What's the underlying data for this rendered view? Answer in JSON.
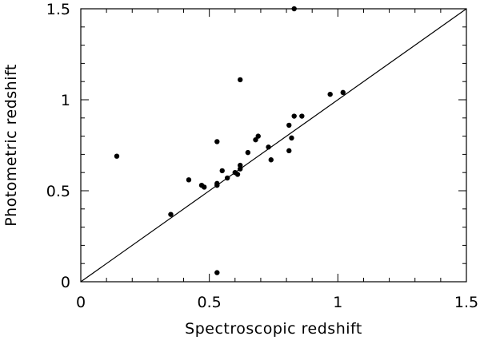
{
  "chart_data": {
    "type": "scatter",
    "xlabel": "Spectroscopic redshift",
    "ylabel": "Photometric redshift",
    "xlim": [
      0,
      1.5
    ],
    "ylim": [
      0,
      1.5
    ],
    "xticks": [
      0,
      0.5,
      1,
      1.5
    ],
    "yticks": [
      0,
      0.5,
      1,
      1.5
    ],
    "xtick_labels": [
      "0",
      "0.5",
      "1",
      "1.5"
    ],
    "ytick_labels": [
      "0",
      "0.5",
      "1",
      "1.5"
    ],
    "reference_line": {
      "from": [
        0,
        0
      ],
      "to": [
        1.5,
        1.5
      ]
    },
    "grid": false,
    "points": [
      {
        "x": 0.14,
        "y": 0.69
      },
      {
        "x": 0.35,
        "y": 0.37
      },
      {
        "x": 0.42,
        "y": 0.56
      },
      {
        "x": 0.47,
        "y": 0.53
      },
      {
        "x": 0.48,
        "y": 0.52
      },
      {
        "x": 0.53,
        "y": 0.53
      },
      {
        "x": 0.53,
        "y": 0.54
      },
      {
        "x": 0.53,
        "y": 0.77
      },
      {
        "x": 0.53,
        "y": 0.05
      },
      {
        "x": 0.55,
        "y": 0.61
      },
      {
        "x": 0.57,
        "y": 0.57
      },
      {
        "x": 0.6,
        "y": 0.6
      },
      {
        "x": 0.61,
        "y": 0.59
      },
      {
        "x": 0.62,
        "y": 0.62
      },
      {
        "x": 0.62,
        "y": 0.64
      },
      {
        "x": 0.62,
        "y": 1.11
      },
      {
        "x": 0.65,
        "y": 0.71
      },
      {
        "x": 0.68,
        "y": 0.78
      },
      {
        "x": 0.69,
        "y": 0.8
      },
      {
        "x": 0.73,
        "y": 0.74
      },
      {
        "x": 0.74,
        "y": 0.67
      },
      {
        "x": 0.81,
        "y": 0.72
      },
      {
        "x": 0.81,
        "y": 0.86
      },
      {
        "x": 0.82,
        "y": 0.79
      },
      {
        "x": 0.83,
        "y": 0.91
      },
      {
        "x": 0.83,
        "y": 1.5
      },
      {
        "x": 0.86,
        "y": 0.91
      },
      {
        "x": 0.97,
        "y": 1.03
      },
      {
        "x": 1.02,
        "y": 1.04
      }
    ]
  }
}
